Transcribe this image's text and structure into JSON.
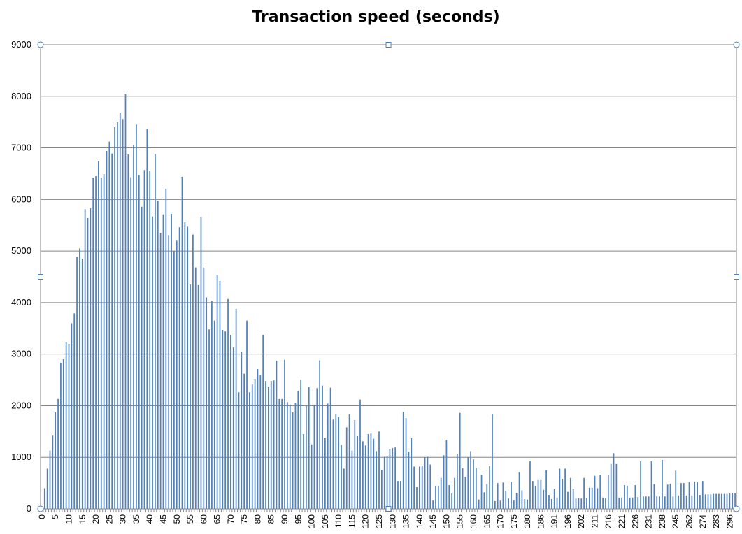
{
  "chart_data": {
    "type": "bar",
    "title": "Transaction speed (seconds)",
    "xlabel": "",
    "ylabel": "",
    "ylim": [
      0,
      9000
    ],
    "yticks": [
      0,
      1000,
      2000,
      3000,
      4000,
      5000,
      6000,
      7000,
      8000,
      9000
    ],
    "grid": true,
    "legend": "none",
    "bar_color": "#4f81bd",
    "x_tick_labels": [
      "0",
      "5",
      "10",
      "15",
      "20",
      "25",
      "30",
      "35",
      "40",
      "45",
      "50",
      "55",
      "60",
      "65",
      "70",
      "75",
      "80",
      "85",
      "90",
      "95",
      "100",
      "105",
      "110",
      "115",
      "120",
      "125",
      "130",
      "135",
      "140",
      "145",
      "150",
      "155",
      "160",
      "165",
      "170",
      "175",
      "180",
      "186",
      "191",
      "196",
      "202",
      "211",
      "216",
      "221",
      "226",
      "231",
      "238",
      "245",
      "262",
      "274",
      "283",
      "296"
    ],
    "x_tick_every": 5,
    "values": [
      0,
      400,
      780,
      1130,
      1420,
      1870,
      2130,
      2830,
      2900,
      3230,
      3200,
      3600,
      3790,
      4890,
      5050,
      4850,
      5810,
      5640,
      5830,
      6420,
      6450,
      6740,
      6420,
      6490,
      6940,
      7120,
      6890,
      7400,
      7500,
      7680,
      7560,
      8040,
      6870,
      6430,
      7060,
      7450,
      6470,
      5860,
      6570,
      7370,
      6560,
      5670,
      6880,
      5970,
      5350,
      5710,
      6210,
      5310,
      5720,
      5000,
      5200,
      5460,
      6440,
      5560,
      5470,
      4350,
      5320,
      4680,
      4340,
      5660,
      4680,
      4100,
      3480,
      4030,
      3650,
      4530,
      4420,
      3470,
      3440,
      4070,
      3370,
      3130,
      3880,
      2260,
      3040,
      2620,
      3650,
      2260,
      2410,
      2520,
      2710,
      2600,
      3370,
      2480,
      2370,
      2480,
      2490,
      2870,
      2130,
      2130,
      2890,
      2070,
      2020,
      1870,
      2060,
      2290,
      2500,
      1450,
      2000,
      2360,
      1250,
      2020,
      2340,
      2880,
      2390,
      1370,
      2040,
      2350,
      1730,
      1840,
      1780,
      1240,
      780,
      1580,
      1830,
      1130,
      1720,
      1410,
      2120,
      1310,
      1230,
      1450,
      1460,
      1360,
      1120,
      1500,
      760,
      1010,
      1020,
      1160,
      1180,
      1190,
      540,
      540,
      1880,
      1760,
      1110,
      1370,
      820,
      420,
      820,
      840,
      1000,
      1010,
      860,
      160,
      440,
      440,
      600,
      1040,
      1340,
      460,
      300,
      600,
      1070,
      1860,
      790,
      620,
      1000,
      1120,
      960,
      800,
      180,
      660,
      320,
      480,
      830,
      1840,
      150,
      500,
      160,
      510,
      350,
      200,
      520,
      160,
      310,
      710,
      360,
      190,
      180,
      920,
      540,
      440,
      560,
      560,
      370,
      750,
      270,
      190,
      380,
      220,
      780,
      580,
      780,
      330,
      600,
      390,
      200,
      210,
      200,
      600,
      210,
      410,
      410,
      640,
      400,
      660,
      220,
      210,
      650,
      870,
      1080,
      870,
      220,
      220,
      460,
      450,
      220,
      220,
      460,
      230,
      920,
      240,
      240,
      240,
      920,
      480,
      240,
      240,
      950,
      240,
      470,
      490,
      240,
      740,
      260,
      500,
      500,
      260,
      520,
      260,
      530,
      520,
      270,
      540,
      280,
      280,
      280,
      290,
      290,
      290,
      290,
      290,
      290,
      300,
      300,
      300
    ]
  }
}
